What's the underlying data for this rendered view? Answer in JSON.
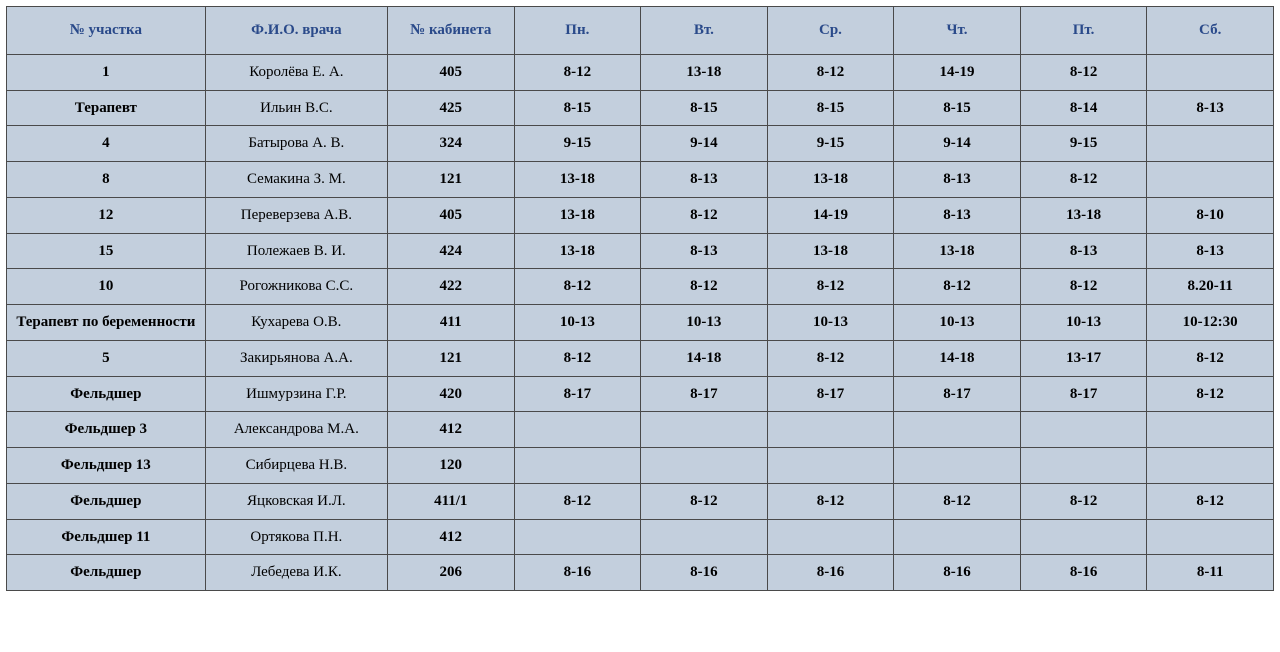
{
  "table": {
    "type": "table",
    "background_color": "#c3cfdd",
    "border_color": "#4a4a4a",
    "header_text_color": "#2a4a8a",
    "body_text_color": "#000000",
    "font_family": "Times New Roman",
    "header_fontsize": 15,
    "body_fontsize": 15,
    "column_widths_pct": [
      15.7,
      14.4,
      10,
      10,
      10,
      10,
      10,
      10,
      10
    ],
    "bold_columns": [
      0,
      2,
      3,
      4,
      5,
      6,
      7,
      8
    ],
    "columns": [
      "№ участка",
      "Ф.И.О. врача",
      "№ кабинета",
      "Пн.",
      "Вт.",
      "Ср.",
      "Чт.",
      "Пт.",
      "Сб."
    ],
    "rows": [
      [
        "1",
        "Королёва Е. А.",
        "405",
        "8-12",
        "13-18",
        "8-12",
        "14-19",
        "8-12",
        ""
      ],
      [
        "Терапевт",
        "Ильин В.С.",
        "425",
        "8-15",
        "8-15",
        "8-15",
        "8-15",
        "8-14",
        "8-13"
      ],
      [
        "4",
        "Батырова А. В.",
        "324",
        "9-15",
        "9-14",
        "9-15",
        "9-14",
        "9-15",
        ""
      ],
      [
        "8",
        "Семакина З. М.",
        "121",
        "13-18",
        "8-13",
        "13-18",
        "8-13",
        "8-12",
        ""
      ],
      [
        "12",
        "Переверзева А.В.",
        "405",
        "13-18",
        "8-12",
        "14-19",
        "8-13",
        "13-18",
        "8-10"
      ],
      [
        "15",
        "Полежаев В. И.",
        "424",
        "13-18",
        "8-13",
        "13-18",
        "13-18",
        "8-13",
        "8-13"
      ],
      [
        "10",
        "Рогожникова С.С.",
        "422",
        "8-12",
        "8-12",
        "8-12",
        "8-12",
        "8-12",
        "8.20-11"
      ],
      [
        "Терапевт по беременности",
        "Кухарева О.В.",
        "411",
        "10-13",
        "10-13",
        "10-13",
        "10-13",
        "10-13",
        "10-12:30"
      ],
      [
        "5",
        "Закирьянова А.А.",
        "121",
        "8-12",
        "14-18",
        "8-12",
        "14-18",
        "13-17",
        "8-12"
      ],
      [
        "Фельдшер",
        "Ишмурзина Г.Р.",
        "420",
        "8-17",
        "8-17",
        "8-17",
        "8-17",
        "8-17",
        "8-12"
      ],
      [
        "Фельдшер 3",
        "Александрова М.А.",
        "412",
        "",
        "",
        "",
        "",
        "",
        ""
      ],
      [
        "Фельдшер 13",
        "Сибирцева Н.В.",
        "120",
        "",
        "",
        "",
        "",
        "",
        ""
      ],
      [
        "Фельдшер",
        "Яцковская И.Л.",
        "411/1",
        "8-12",
        "8-12",
        "8-12",
        "8-12",
        "8-12",
        "8-12"
      ],
      [
        "Фельдшер 11",
        "Ортякова П.Н.",
        "412",
        "",
        "",
        "",
        "",
        "",
        ""
      ],
      [
        "Фельдшер",
        "Лебедева И.К.",
        "206",
        "8-16",
        "8-16",
        "8-16",
        "8-16",
        "8-16",
        "8-11"
      ]
    ]
  }
}
